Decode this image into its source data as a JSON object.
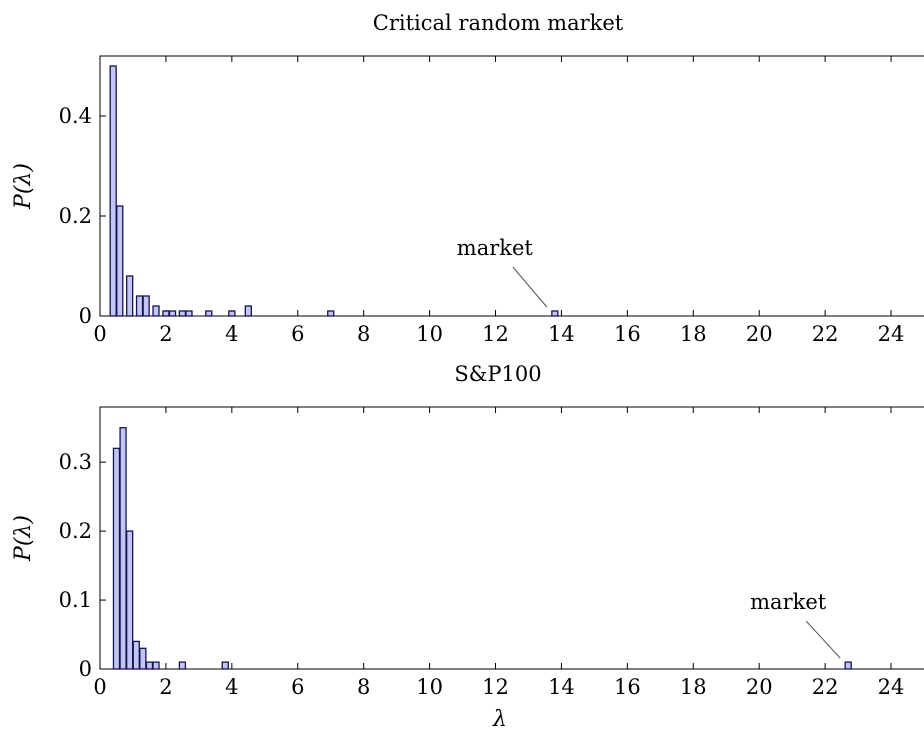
{
  "chart_data": [
    {
      "type": "bar",
      "title": "Critical random market",
      "ylabel": "P(λ)",
      "xlabel": "",
      "xlim": [
        0,
        25
      ],
      "ylim": [
        0,
        0.52
      ],
      "xticks": [
        0,
        2,
        4,
        6,
        8,
        10,
        12,
        14,
        16,
        18,
        20,
        22,
        24
      ],
      "yticks": [
        0,
        0.2,
        0.4
      ],
      "ytick_labels": [
        "0",
        "0.2",
        "0.4"
      ],
      "grid": false,
      "x": [
        0.4,
        0.6,
        0.9,
        1.2,
        1.4,
        1.7,
        2.0,
        2.2,
        2.5,
        2.7,
        3.3,
        4.0,
        4.5,
        7.0,
        13.8
      ],
      "values": [
        0.5,
        0.22,
        0.08,
        0.04,
        0.04,
        0.02,
        0.01,
        0.01,
        0.01,
        0.01,
        0.01,
        0.01,
        0.02,
        0.01,
        0.01
      ],
      "annotation": {
        "text": "market",
        "x": 13.8,
        "y": 0.01
      }
    },
    {
      "type": "bar",
      "title": "S&P100",
      "ylabel": "P(λ)",
      "xlabel": "λ",
      "xlim": [
        0,
        25
      ],
      "ylim": [
        0,
        0.38
      ],
      "xticks": [
        0,
        2,
        4,
        6,
        8,
        10,
        12,
        14,
        16,
        18,
        20,
        22,
        24
      ],
      "yticks": [
        0,
        0.1,
        0.2,
        0.3
      ],
      "ytick_labels": [
        "0",
        "0.1",
        "0.2",
        "0.3"
      ],
      "grid": false,
      "x": [
        0.5,
        0.7,
        0.9,
        1.1,
        1.3,
        1.5,
        1.7,
        2.5,
        3.8,
        22.7
      ],
      "values": [
        0.32,
        0.35,
        0.2,
        0.04,
        0.03,
        0.01,
        0.01,
        0.01,
        0.01,
        0.01
      ],
      "annotation": {
        "text": "market",
        "x": 22.7,
        "y": 0.01
      }
    }
  ]
}
